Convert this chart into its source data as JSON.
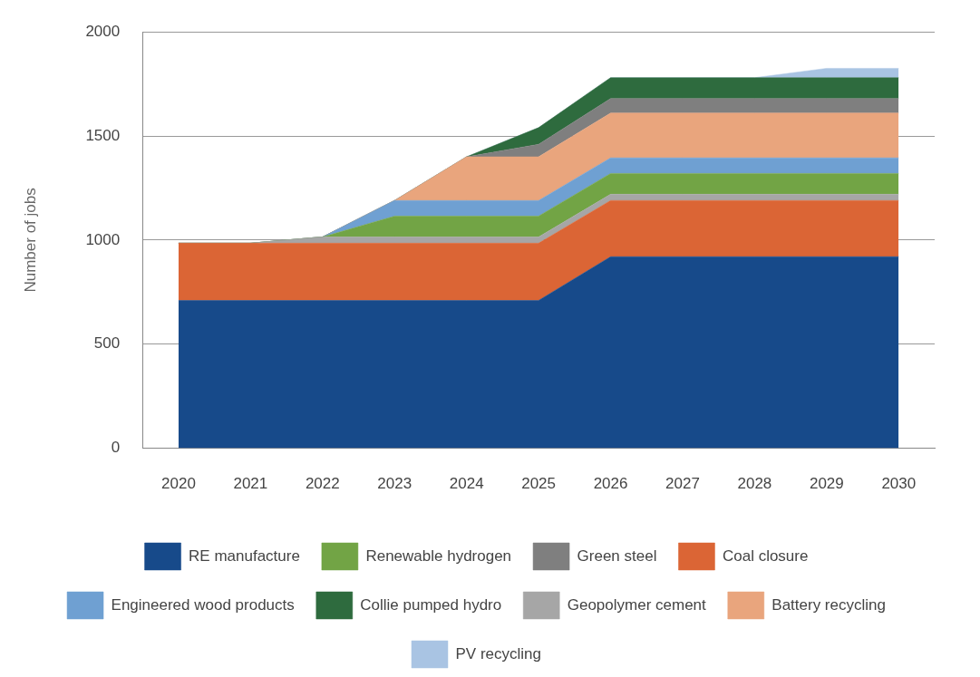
{
  "chart_data": {
    "type": "area",
    "stacked": true,
    "ylabel": "Number of jobs",
    "categories": [
      "2020",
      "2021",
      "2022",
      "2023",
      "2024",
      "2025",
      "2026",
      "2027",
      "2028",
      "2029",
      "2030"
    ],
    "ylim": [
      0,
      2000
    ],
    "yticks": [
      0,
      500,
      1000,
      1500,
      2000
    ],
    "grid": "y",
    "legend": "bottom",
    "series": [
      {
        "name": "RE manufacture",
        "color": "#174a8a",
        "values": [
          710,
          710,
          710,
          710,
          710,
          710,
          920,
          920,
          920,
          920,
          920
        ]
      },
      {
        "name": "Coal closure",
        "color": "#db6535",
        "values": [
          275,
          275,
          275,
          275,
          275,
          275,
          270,
          270,
          270,
          270,
          270
        ]
      },
      {
        "name": "Geopolymer cement",
        "color": "#a6a6a6",
        "values": [
          0,
          0,
          30,
          30,
          30,
          30,
          30,
          30,
          30,
          30,
          30
        ]
      },
      {
        "name": "Renewable hydrogen",
        "color": "#72a445",
        "values": [
          0,
          0,
          0,
          100,
          100,
          100,
          100,
          100,
          100,
          100,
          100
        ]
      },
      {
        "name": "Engineered wood products",
        "color": "#6fa0d2",
        "values": [
          0,
          0,
          0,
          75,
          75,
          75,
          75,
          75,
          75,
          75,
          75
        ]
      },
      {
        "name": "Battery recycling",
        "color": "#e9a57d",
        "values": [
          0,
          0,
          0,
          0,
          210,
          210,
          215,
          215,
          215,
          215,
          215
        ]
      },
      {
        "name": "Green steel",
        "color": "#7f7f7f",
        "values": [
          0,
          0,
          0,
          0,
          0,
          60,
          70,
          70,
          70,
          70,
          70
        ]
      },
      {
        "name": "Collie pumped hydro",
        "color": "#2e6b3e",
        "values": [
          0,
          0,
          0,
          0,
          0,
          80,
          100,
          100,
          100,
          100,
          100
        ]
      },
      {
        "name": "PV recycling",
        "color": "#a9c4e3",
        "values": [
          0,
          0,
          0,
          0,
          0,
          0,
          0,
          0,
          0,
          45,
          45
        ]
      }
    ]
  }
}
